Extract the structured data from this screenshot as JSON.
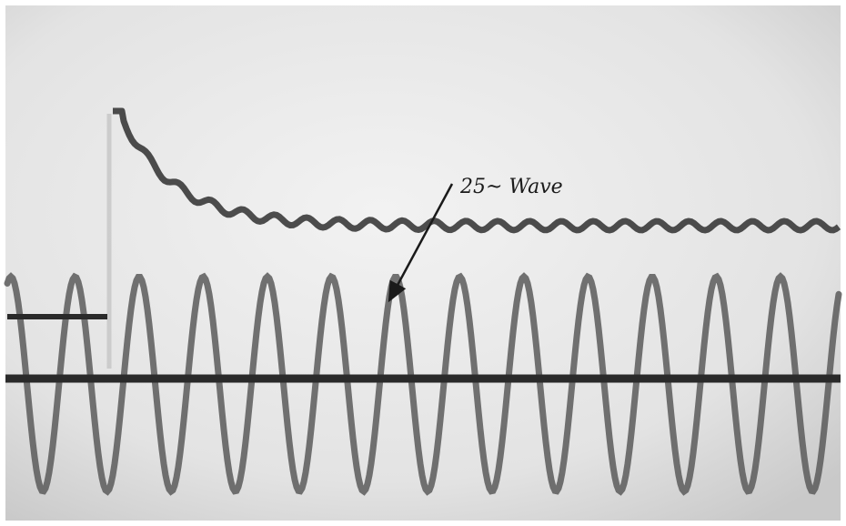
{
  "annotation": {
    "label": "25~ Wave"
  }
}
